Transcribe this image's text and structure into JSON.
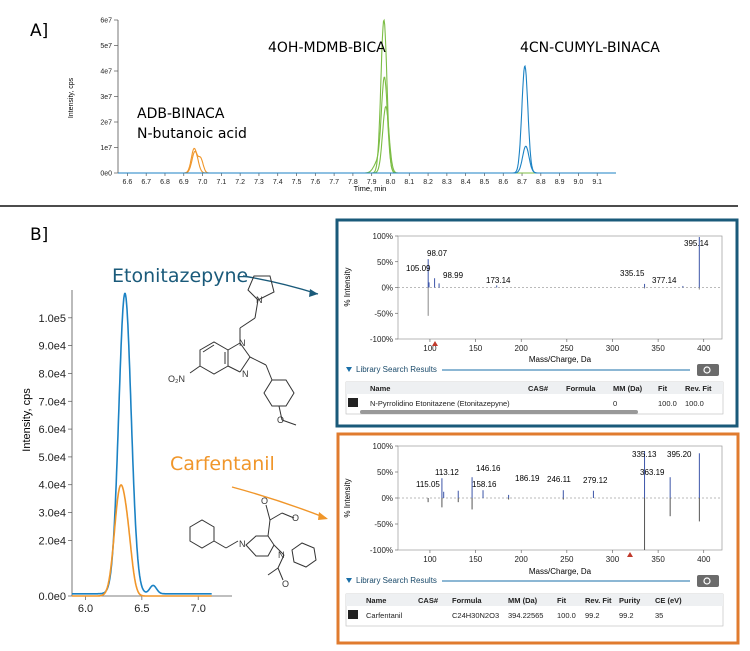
{
  "panelA": {
    "label": "A]",
    "ylabel": "Intensity, cps",
    "xlabel": "Time, min",
    "yticks": [
      "0e0",
      "1e7",
      "2e7",
      "3e7",
      "4e7",
      "5e7",
      "6e7"
    ],
    "xticks": [
      "6.6",
      "6.7",
      "6.8",
      "6.9",
      "7.0",
      "7.1",
      "7.2",
      "7.3",
      "7.4",
      "7.5",
      "7.6",
      "7.7",
      "7.8",
      "7.9",
      "8.0",
      "8.1",
      "8.2",
      "8.3",
      "8.4",
      "8.5",
      "8.6",
      "8.7",
      "8.8",
      "8.9",
      "9.0",
      "9.1"
    ],
    "annotations": [
      {
        "text": "ADB-BINACA"
      },
      {
        "text": "N-butanoic acid"
      },
      {
        "text": "4OH-MDMB-BICA"
      },
      {
        "text": "4CN-CUMYL-BINACA"
      }
    ]
  },
  "panelB": {
    "label": "B]",
    "ylabel": "Intensity, cps",
    "yticks": [
      "0.0e0",
      "2.0e4",
      "3.0e4",
      "4.0e4",
      "5.0e4",
      "6.0e4",
      "7.0e4",
      "8.0e4",
      "9.0e4",
      "1.0e5"
    ],
    "xticks": [
      "6.0",
      "6.5",
      "7.0"
    ],
    "compound1": "Etonitazepyne",
    "compound2": "Carfentanil",
    "no2_label": "O₂N"
  },
  "spectrum1": {
    "yticks": [
      "100%",
      "50%",
      "0%",
      "-50%",
      "-100%"
    ],
    "xticks": [
      "100",
      "150",
      "200",
      "250",
      "300",
      "350",
      "400"
    ],
    "ylabel": "% Intensity",
    "xlabel": "Mass/Charge, Da",
    "peak_labels": [
      "98.07",
      "105.09",
      "98.99",
      "173.14",
      "335.15",
      "377.14",
      "395.14"
    ],
    "results_title": "Library Search Results",
    "headers": [
      "Name",
      "CAS#",
      "Formula",
      "MM (Da)",
      "Fit",
      "Rev. Fit"
    ],
    "row": [
      "N-Pyrrolidino Etonitazene (Etonitazepyne)",
      "",
      "",
      "0",
      "100.0",
      "100.0"
    ]
  },
  "spectrum2": {
    "yticks": [
      "100%",
      "50%",
      "0%",
      "-50%",
      "-100%"
    ],
    "xticks": [
      "100",
      "150",
      "200",
      "250",
      "300",
      "350",
      "400"
    ],
    "ylabel": "% Intensity",
    "xlabel": "Mass/Charge, Da",
    "peak_labels": [
      "113.12",
      "146.16",
      "115.05",
      "158.16",
      "186.19",
      "246.11",
      "279.12",
      "335.13",
      "363.19",
      "395.20"
    ],
    "results_title": "Library Search Results",
    "headers": [
      "Name",
      "CAS#",
      "Formula",
      "MM (Da)",
      "Fit",
      "Rev. Fit",
      "Purity",
      "CE (eV)"
    ],
    "row": [
      "Carfentanil",
      "",
      "C24H30N2O3",
      "394.22565",
      "100.0",
      "99.2",
      "99.2",
      "35"
    ]
  },
  "colors": {
    "orange": "#f0962a",
    "green": "#7cbd45",
    "blue": "#1b82c4",
    "teal": "#1a5a7a",
    "orangeBorder": "#e07b2e",
    "specBlue": "#3c55a8"
  },
  "chart_data": [
    {
      "type": "line",
      "xlabel": "Time, min",
      "ylabel": "Intensity, cps",
      "xlim": [
        6.55,
        9.2
      ],
      "ylim": [
        0,
        60000000.0
      ],
      "series": [
        {
          "peak_x": 6.96,
          "peak_y": 10000000.0
        },
        {
          "peak_x": 7.97,
          "peak_y": 60000000.0
        },
        {
          "peak_x": 8.72,
          "peak_y": 42000000.0
        }
      ]
    },
    {
      "type": "line",
      "ylabel": "Intensity, cps",
      "xlim": [
        5.88,
        7.3
      ],
      "ylim": [
        0,
        110000.0
      ],
      "series": [
        {
          "name": "Etonitazepyne",
          "peak_x": 6.35,
          "peak_y": 108000.0
        },
        {
          "name": "Carfentanil",
          "peak_x": 6.3,
          "peak_y": 37000.0
        }
      ]
    }
  ]
}
